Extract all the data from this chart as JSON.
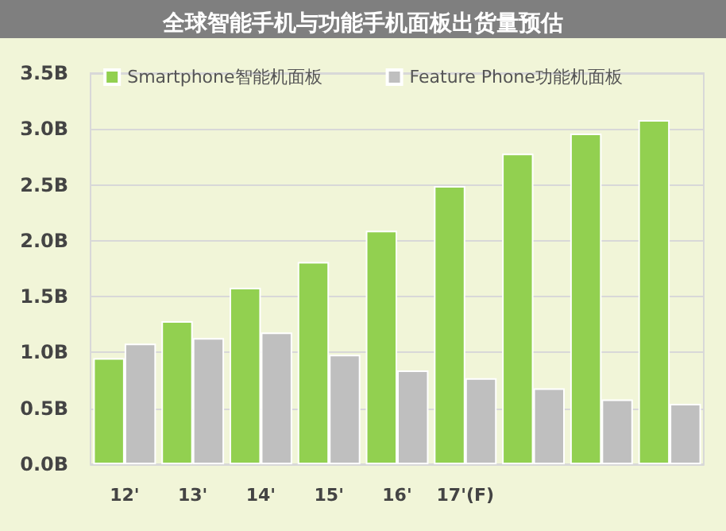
{
  "chart_data": {
    "type": "bar",
    "title": "全球智能手机与功能手机面板出货量预估",
    "categories": [
      "12'",
      "13'",
      "14'",
      "15'",
      "16'",
      "17'(F)",
      null,
      null,
      null
    ],
    "series": [
      {
        "name": "Smartphone智能机面板",
        "color": "#92d050",
        "values": [
          0.95,
          1.28,
          1.58,
          1.81,
          2.09,
          2.49,
          2.78,
          2.96,
          3.08
        ]
      },
      {
        "name": "Feature Phone功能机面板",
        "color": "#bfbfbf",
        "values": [
          1.08,
          1.13,
          1.18,
          0.98,
          0.84,
          0.77,
          0.68,
          0.58,
          0.54
        ]
      }
    ],
    "ylim": [
      0,
      3.5
    ],
    "yticks": [
      {
        "value": 0,
        "label": "0.0B"
      },
      {
        "value": 0.5,
        "label": "0.5B"
      },
      {
        "value": 1,
        "label": "1.0B"
      },
      {
        "value": 1.5,
        "label": "1.5B"
      },
      {
        "value": 2,
        "label": "2.0B"
      },
      {
        "value": 2.5,
        "label": "2.5B"
      },
      {
        "value": 3,
        "label": "3.0B"
      },
      {
        "value": 3.5,
        "label": "3.5B"
      }
    ],
    "grid": "y",
    "legend": "top"
  }
}
